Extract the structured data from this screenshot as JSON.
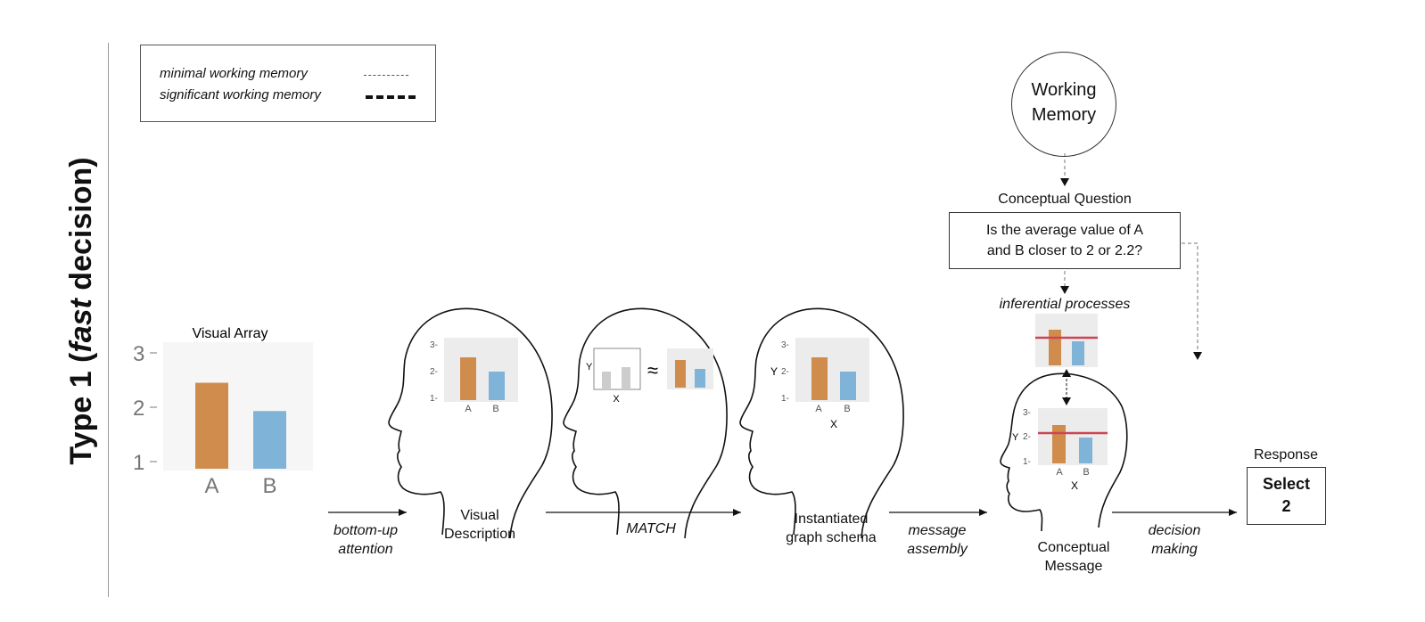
{
  "title_prefix": "Type 1 (",
  "title_em": "fast",
  "title_suffix": " decision)",
  "legend": {
    "minimal": "minimal working memory",
    "significant": "significant working memory"
  },
  "colors": {
    "bar_a": "#d08c4c",
    "bar_b": "#7fb3d8",
    "inference_line": "#cc4455",
    "panel_bg": "#ececec",
    "array_bg": "#f6f6f6"
  },
  "visual_array": {
    "title": "Visual  Array",
    "categories": [
      "A",
      "B"
    ],
    "values": [
      2.45,
      1.93
    ],
    "y_ticks": [
      "3",
      "2",
      "1"
    ]
  },
  "stages": {
    "bottom_up": [
      "bottom-up",
      "attention"
    ],
    "visual_description": [
      "Visual",
      "Description"
    ],
    "match": "MATCH",
    "graph_schema": [
      "Instantiated",
      "graph schema"
    ],
    "message_assembly": [
      "message",
      "assembly"
    ],
    "conceptual_message": [
      "Conceptual",
      "Message"
    ],
    "decision_making": [
      "decision",
      "making"
    ],
    "inferential": "inferential processes",
    "conceptual_question_label": "Conceptual Question",
    "question": [
      "Is the average value of A",
      "and B closer to 2 or 2.2?"
    ],
    "working_memory": [
      "Working",
      "Memory"
    ],
    "response_label": "Response",
    "response": [
      "Select",
      "2"
    ]
  },
  "mini_chart": {
    "y_ticks": [
      "3-",
      "2-",
      "1-"
    ],
    "categories": [
      "A",
      "B"
    ],
    "axis_y": "Y",
    "axis_x": "X",
    "approx": "≈"
  }
}
